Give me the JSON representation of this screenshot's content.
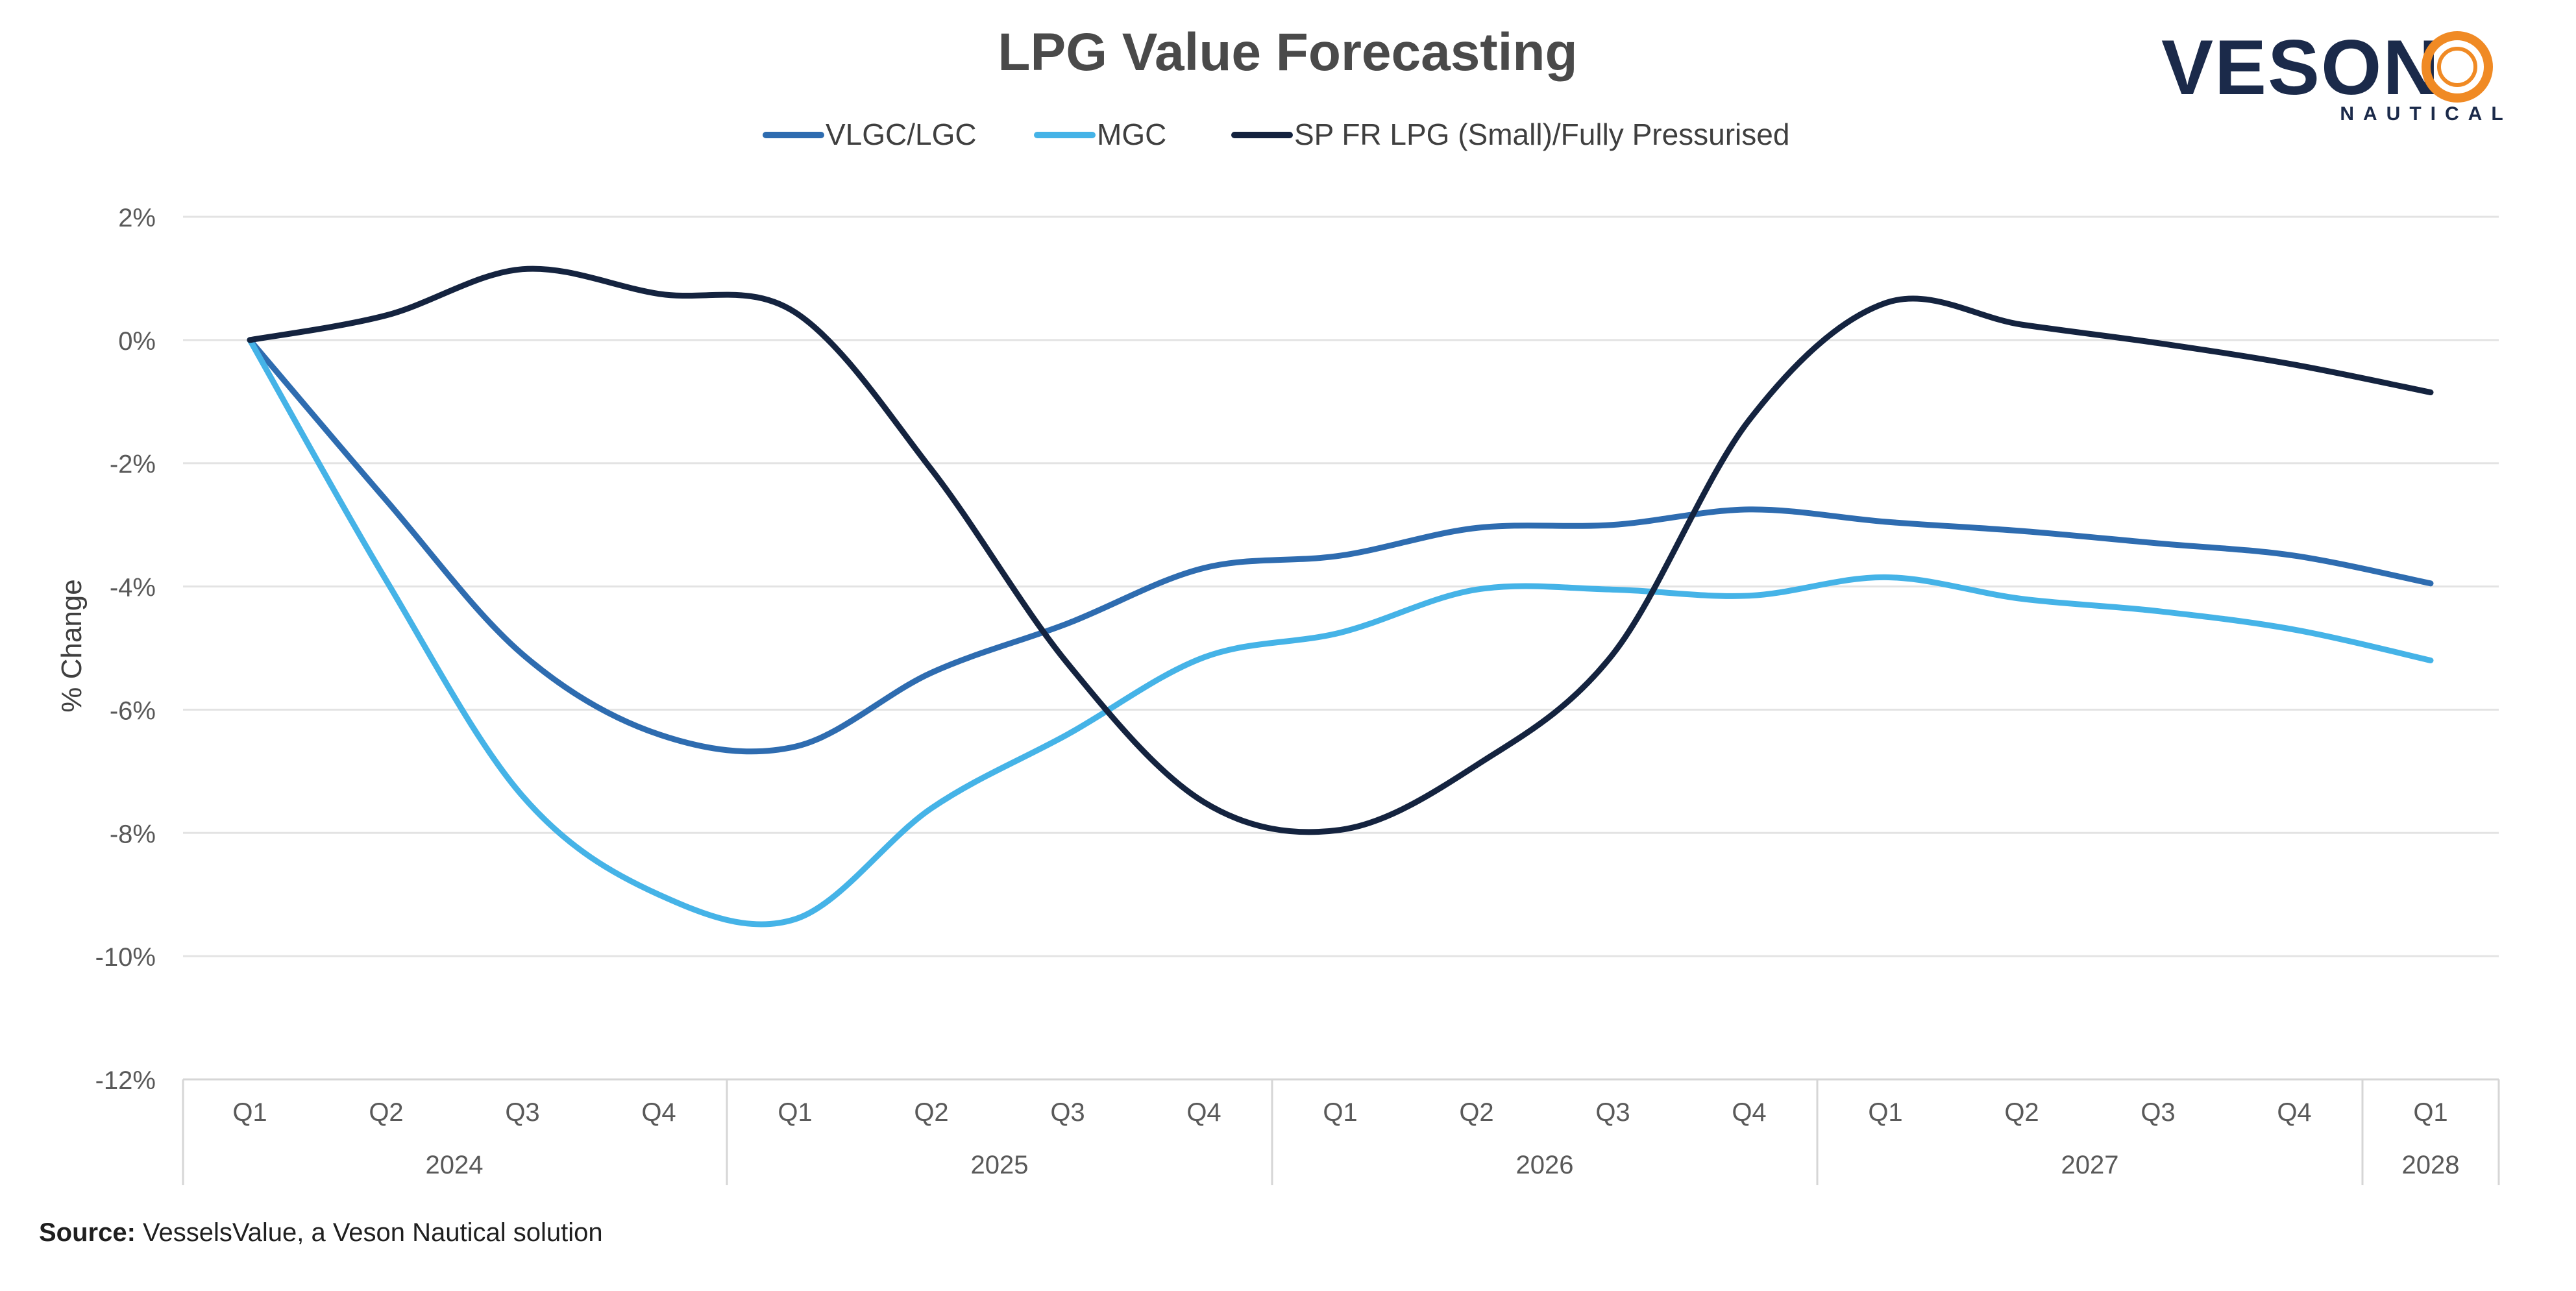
{
  "chart_data": {
    "type": "line",
    "title": "LPG Value Forecasting",
    "ylabel": "% Change",
    "xlabel": "",
    "ylim": [
      -12,
      2
    ],
    "y_ticks": [
      2,
      0,
      -2,
      -4,
      -6,
      -8,
      -10,
      -12
    ],
    "y_tick_labels": [
      "2%",
      "0%",
      "-2%",
      "-4%",
      "-6%",
      "-8%",
      "-10%",
      "-12%"
    ],
    "grid": true,
    "legend_position": "top-center",
    "categories": [
      "Q1",
      "Q2",
      "Q3",
      "Q4",
      "Q1",
      "Q2",
      "Q3",
      "Q4",
      "Q1",
      "Q2",
      "Q3",
      "Q4",
      "Q1",
      "Q2",
      "Q3",
      "Q4",
      "Q1"
    ],
    "year_groups": [
      {
        "label": "2024",
        "count": 4
      },
      {
        "label": "2025",
        "count": 4
      },
      {
        "label": "2026",
        "count": 4
      },
      {
        "label": "2027",
        "count": 4
      },
      {
        "label": "2028",
        "count": 1
      }
    ],
    "series": [
      {
        "name": "VLGC/LGC",
        "color": "#2e6cb0",
        "values": [
          0,
          -2.6,
          -5.1,
          -6.4,
          -6.6,
          -5.4,
          -4.6,
          -3.7,
          -3.5,
          -3.05,
          -3.0,
          -2.75,
          -2.95,
          -3.1,
          -3.3,
          -3.5,
          -3.95
        ]
      },
      {
        "name": "MGC",
        "color": "#45b3e7",
        "values": [
          0,
          -3.9,
          -7.4,
          -9.0,
          -9.4,
          -7.6,
          -6.4,
          -5.15,
          -4.75,
          -4.05,
          -4.05,
          -4.15,
          -3.85,
          -4.2,
          -4.4,
          -4.7,
          -5.2
        ]
      },
      {
        "name": "SP FR LPG (Small)/Fully Pressurised",
        "color": "#14233f",
        "values": [
          0,
          0.4,
          1.15,
          0.75,
          0.45,
          -2.1,
          -5.25,
          -7.5,
          -7.95,
          -6.9,
          -5.1,
          -1.3,
          0.6,
          0.25,
          -0.05,
          -0.4,
          -0.85
        ]
      }
    ]
  },
  "source": {
    "bold": "Source:",
    "text": " VesselsValue, a Veson Nautical solution"
  },
  "logo": {
    "name": "VESON",
    "sub": "NAUTICAL",
    "accent_color": "#f08a24",
    "color": "#1b2a4a"
  },
  "colors": {
    "grid": "#e3e3e3",
    "axis": "#d6d6d6"
  }
}
